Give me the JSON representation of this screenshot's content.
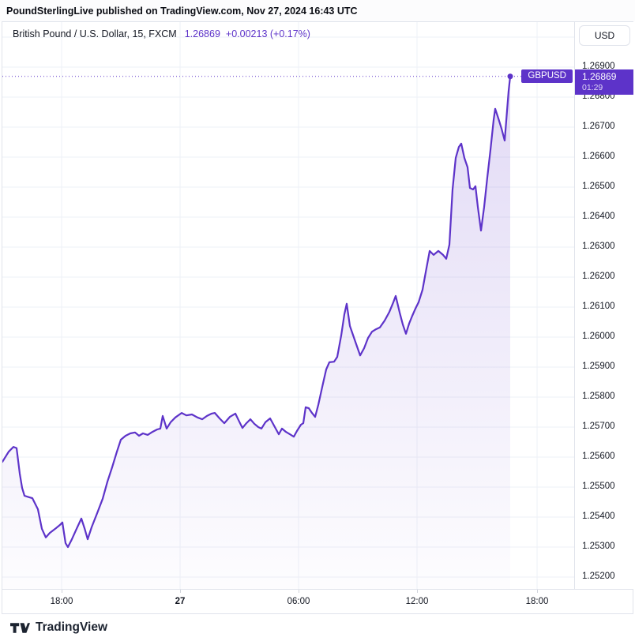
{
  "topbar": {
    "text": "PoundSterlingLive published on TradingView.com, Nov 27, 2024 16:43 UTC"
  },
  "header": {
    "symbol": "British Pound / U.S. Dollar, 15, FXCM",
    "price": "1.26869",
    "change": "+0.00213 (+0.17%)"
  },
  "axis": {
    "currency_button": "USD"
  },
  "label": {
    "symbol": "GBPUSD",
    "price": "1.26869",
    "countdown": "01:29"
  },
  "footer": {
    "brand": "TradingView"
  },
  "colors": {
    "accent": "#5d33c9",
    "grid": "#eef1f7",
    "border": "#e0e3eb",
    "text": "#131722",
    "fill_top": "rgba(93,51,201,0.18)",
    "fill_bottom": "rgba(93,51,201,0.01)"
  },
  "chart_data": {
    "type": "area",
    "title": "British Pound / U.S. Dollar",
    "interval": "15",
    "exchange": "FXCM",
    "current_price": 1.26869,
    "change_abs": 0.00213,
    "change_pct": 0.17,
    "grid": true,
    "ylim": [
      1.2515,
      1.27
    ],
    "y_ticks": [
      "1.26900",
      "1.26800",
      "1.26700",
      "1.26600",
      "1.26500",
      "1.26400",
      "1.26300",
      "1.26200",
      "1.26100",
      "1.26000",
      "1.25900",
      "1.25800",
      "1.25700",
      "1.25600",
      "1.25500",
      "1.25400",
      "1.25300",
      "1.25200"
    ],
    "x_ticks": [
      {
        "label": "18:00",
        "bold": false
      },
      {
        "label": "27",
        "bold": true
      },
      {
        "label": "06:00",
        "bold": false
      },
      {
        "label": "12:00",
        "bold": false
      },
      {
        "label": "18:00",
        "bold": false
      }
    ],
    "points": [
      [
        0,
        1.25584
      ],
      [
        8,
        1.25618
      ],
      [
        14,
        1.25634
      ],
      [
        18,
        1.2563
      ],
      [
        22,
        1.25545
      ],
      [
        25,
        1.25497
      ],
      [
        28,
        1.25471
      ],
      [
        34,
        1.25466
      ],
      [
        38,
        1.25463
      ],
      [
        45,
        1.25426
      ],
      [
        50,
        1.25361
      ],
      [
        55,
        1.25332
      ],
      [
        60,
        1.25347
      ],
      [
        67,
        1.25361
      ],
      [
        73,
        1.25374
      ],
      [
        76,
        1.25382
      ],
      [
        80,
        1.25313
      ],
      [
        83,
        1.253
      ],
      [
        88,
        1.25326
      ],
      [
        94,
        1.25361
      ],
      [
        100,
        1.25395
      ],
      [
        104,
        1.25363
      ],
      [
        108,
        1.25326
      ],
      [
        113,
        1.25366
      ],
      [
        120,
        1.25413
      ],
      [
        127,
        1.25461
      ],
      [
        133,
        1.25518
      ],
      [
        139,
        1.25566
      ],
      [
        145,
        1.25618
      ],
      [
        150,
        1.25658
      ],
      [
        156,
        1.25671
      ],
      [
        162,
        1.25679
      ],
      [
        168,
        1.25682
      ],
      [
        173,
        1.25671
      ],
      [
        178,
        1.25679
      ],
      [
        184,
        1.25674
      ],
      [
        190,
        1.25684
      ],
      [
        196,
        1.25692
      ],
      [
        200,
        1.25695
      ],
      [
        203,
        1.25737
      ],
      [
        208,
        1.25695
      ],
      [
        213,
        1.25716
      ],
      [
        219,
        1.25732
      ],
      [
        227,
        1.25747
      ],
      [
        233,
        1.25739
      ],
      [
        240,
        1.25742
      ],
      [
        247,
        1.25732
      ],
      [
        253,
        1.25726
      ],
      [
        259,
        1.25737
      ],
      [
        265,
        1.25745
      ],
      [
        269,
        1.25747
      ],
      [
        275,
        1.25729
      ],
      [
        281,
        1.25713
      ],
      [
        288,
        1.25734
      ],
      [
        295,
        1.25745
      ],
      [
        300,
        1.25718
      ],
      [
        304,
        1.25697
      ],
      [
        309,
        1.25713
      ],
      [
        314,
        1.25726
      ],
      [
        319,
        1.25711
      ],
      [
        324,
        1.257
      ],
      [
        328,
        1.25695
      ],
      [
        333,
        1.25716
      ],
      [
        339,
        1.25729
      ],
      [
        345,
        1.257
      ],
      [
        350,
        1.25676
      ],
      [
        354,
        1.25695
      ],
      [
        359,
        1.25684
      ],
      [
        364,
        1.25676
      ],
      [
        369,
        1.25668
      ],
      [
        373,
        1.25687
      ],
      [
        378,
        1.25708
      ],
      [
        381,
        1.25713
      ],
      [
        384,
        1.25766
      ],
      [
        388,
        1.25763
      ],
      [
        392,
        1.25747
      ],
      [
        396,
        1.25734
      ],
      [
        400,
        1.25774
      ],
      [
        405,
        1.25834
      ],
      [
        410,
        1.25892
      ],
      [
        414,
        1.25916
      ],
      [
        420,
        1.25918
      ],
      [
        424,
        1.25934
      ],
      [
        429,
        1.26005
      ],
      [
        433,
        1.26076
      ],
      [
        436,
        1.26111
      ],
      [
        440,
        1.26037
      ],
      [
        447,
        1.25984
      ],
      [
        453,
        1.25939
      ],
      [
        458,
        1.25963
      ],
      [
        463,
        1.25997
      ],
      [
        468,
        1.26018
      ],
      [
        473,
        1.26026
      ],
      [
        478,
        1.26032
      ],
      [
        484,
        1.26055
      ],
      [
        490,
        1.26084
      ],
      [
        495,
        1.26116
      ],
      [
        498,
        1.26137
      ],
      [
        503,
        1.26082
      ],
      [
        507,
        1.26042
      ],
      [
        511,
        1.26011
      ],
      [
        515,
        1.26045
      ],
      [
        519,
        1.26071
      ],
      [
        523,
        1.26095
      ],
      [
        527,
        1.26116
      ],
      [
        532,
        1.26158
      ],
      [
        536,
        1.26216
      ],
      [
        541,
        1.26287
      ],
      [
        546,
        1.26274
      ],
      [
        552,
        1.26287
      ],
      [
        558,
        1.26274
      ],
      [
        562,
        1.26261
      ],
      [
        566,
        1.26308
      ],
      [
        570,
        1.26492
      ],
      [
        574,
        1.26597
      ],
      [
        578,
        1.26634
      ],
      [
        581,
        1.26645
      ],
      [
        585,
        1.26597
      ],
      [
        589,
        1.26566
      ],
      [
        592,
        1.26497
      ],
      [
        596,
        1.26492
      ],
      [
        599,
        1.26503
      ],
      [
        602,
        1.26434
      ],
      [
        606,
        1.26355
      ],
      [
        610,
        1.26434
      ],
      [
        614,
        1.26532
      ],
      [
        618,
        1.26624
      ],
      [
        622,
        1.26724
      ],
      [
        624,
        1.26761
      ],
      [
        628,
        1.26729
      ],
      [
        632,
        1.26695
      ],
      [
        636,
        1.26655
      ],
      [
        639,
        1.26755
      ],
      [
        641,
        1.26821
      ],
      [
        643,
        1.26869
      ]
    ]
  }
}
